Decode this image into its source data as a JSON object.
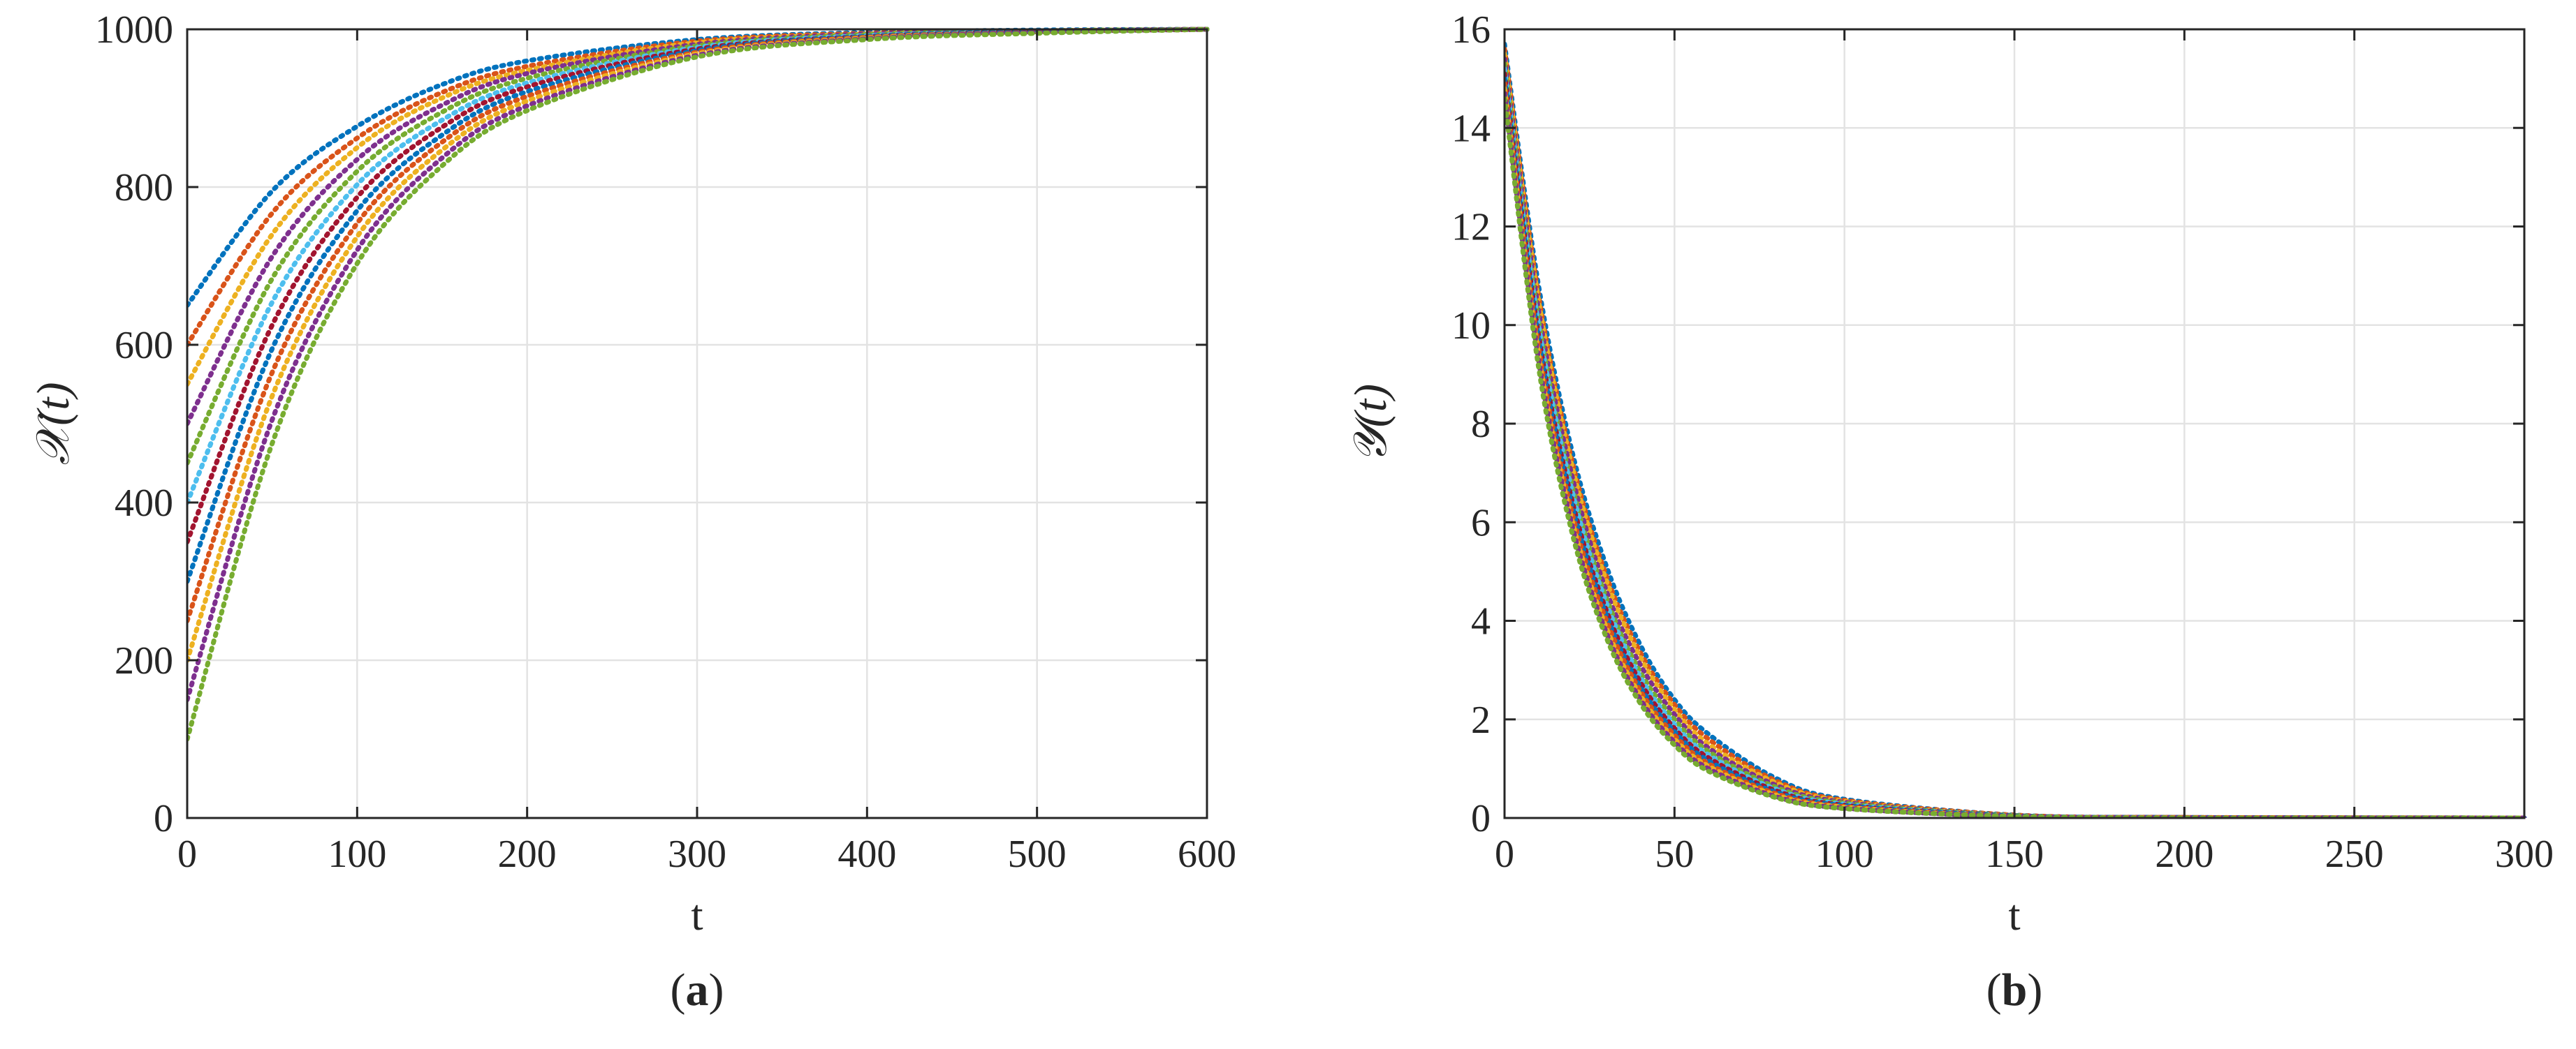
{
  "chart_data": [
    {
      "type": "line",
      "caption": "a",
      "xlabel": "t",
      "ylabel": "𝒳(t)",
      "xlim": [
        0,
        600
      ],
      "ylim": [
        0,
        1000
      ],
      "xticks": [
        0,
        100,
        200,
        300,
        400,
        500,
        600
      ],
      "yticks": [
        0,
        200,
        400,
        600,
        800,
        1000
      ],
      "grid": true,
      "line_style": "dotted",
      "series": [
        {
          "color": "#0072BD",
          "x": [
            0,
            50,
            100,
            150,
            200,
            300,
            400,
            500,
            600
          ],
          "y": [
            650,
            795,
            877,
            930,
            960,
            987,
            996,
            999,
            1000
          ]
        },
        {
          "color": "#D95319",
          "x": [
            0,
            50,
            100,
            150,
            200,
            300,
            400,
            500,
            600
          ],
          "y": [
            600,
            767,
            862,
            920,
            953,
            985,
            995,
            998,
            1000
          ]
        },
        {
          "color": "#EDB120",
          "x": [
            0,
            50,
            100,
            150,
            200,
            300,
            400,
            500,
            600
          ],
          "y": [
            550,
            740,
            850,
            913,
            948,
            983,
            994,
            998,
            1000
          ]
        },
        {
          "color": "#7E2F8E",
          "x": [
            0,
            50,
            100,
            150,
            200,
            300,
            400,
            500,
            600
          ],
          "y": [
            500,
            712,
            835,
            904,
            944,
            981,
            994,
            998,
            1000
          ]
        },
        {
          "color": "#77AC30",
          "x": [
            0,
            50,
            100,
            150,
            200,
            300,
            400,
            500,
            600
          ],
          "y": [
            450,
            684,
            820,
            895,
            938,
            979,
            993,
            998,
            1000
          ]
        },
        {
          "color": "#4DBEEE",
          "x": [
            0,
            50,
            100,
            150,
            200,
            300,
            400,
            500,
            600
          ],
          "y": [
            400,
            654,
            803,
            885,
            932,
            977,
            992,
            997,
            1000
          ]
        },
        {
          "color": "#A2142F",
          "x": [
            0,
            50,
            100,
            150,
            200,
            300,
            400,
            500,
            600
          ],
          "y": [
            350,
            625,
            787,
            876,
            927,
            975,
            991,
            997,
            1000
          ]
        },
        {
          "color": "#0072BD",
          "x": [
            0,
            50,
            100,
            150,
            200,
            300,
            400,
            500,
            600
          ],
          "y": [
            300,
            595,
            770,
            866,
            921,
            973,
            991,
            997,
            1000
          ]
        },
        {
          "color": "#D95319",
          "x": [
            0,
            50,
            100,
            150,
            200,
            300,
            400,
            500,
            600
          ],
          "y": [
            250,
            565,
            754,
            857,
            915,
            971,
            990,
            996,
            1000
          ]
        },
        {
          "color": "#EDB120",
          "x": [
            0,
            50,
            100,
            150,
            200,
            300,
            400,
            500,
            600
          ],
          "y": [
            200,
            535,
            737,
            847,
            909,
            969,
            989,
            996,
            1000
          ]
        },
        {
          "color": "#7E2F8E",
          "x": [
            0,
            50,
            100,
            150,
            200,
            300,
            400,
            500,
            600
          ],
          "y": [
            150,
            505,
            720,
            837,
            903,
            967,
            988,
            996,
            1000
          ]
        },
        {
          "color": "#77AC30",
          "x": [
            0,
            50,
            100,
            150,
            200,
            300,
            400,
            500,
            600
          ],
          "y": [
            100,
            475,
            703,
            827,
            897,
            965,
            987,
            995,
            1000
          ]
        }
      ]
    },
    {
      "type": "line",
      "caption": "b",
      "xlabel": "t",
      "ylabel": "𝒴(t)",
      "xlim": [
        0,
        300
      ],
      "ylim": [
        0,
        16
      ],
      "xticks": [
        0,
        50,
        100,
        150,
        200,
        250,
        300
      ],
      "yticks": [
        0,
        2,
        4,
        6,
        8,
        10,
        12,
        14,
        16
      ],
      "grid": true,
      "line_style": "dotted",
      "series": [
        {
          "color": "#0072BD",
          "x": [
            0,
            10,
            20,
            30,
            40,
            50,
            60,
            80,
            100,
            150,
            200,
            300
          ],
          "y": [
            15.7,
            10.8,
            7.4,
            5.1,
            3.5,
            2.4,
            1.7,
            0.8,
            0.38,
            0.06,
            0.01,
            0
          ]
        },
        {
          "color": "#D95319",
          "x": [
            0,
            10,
            20,
            30,
            40,
            50,
            60,
            80,
            100,
            150,
            200,
            300
          ],
          "y": [
            15.6,
            10.6,
            7.2,
            4.9,
            3.35,
            2.3,
            1.6,
            0.75,
            0.36,
            0.06,
            0.01,
            0
          ]
        },
        {
          "color": "#EDB120",
          "x": [
            0,
            10,
            20,
            30,
            40,
            50,
            60,
            80,
            100,
            150,
            200,
            300
          ],
          "y": [
            15.5,
            10.5,
            7.1,
            4.8,
            3.25,
            2.2,
            1.5,
            0.71,
            0.34,
            0.05,
            0.01,
            0
          ]
        },
        {
          "color": "#7E2F8E",
          "x": [
            0,
            10,
            20,
            30,
            40,
            50,
            60,
            80,
            100,
            150,
            200,
            300
          ],
          "y": [
            15.4,
            10.3,
            6.9,
            4.6,
            3.1,
            2.1,
            1.42,
            0.66,
            0.32,
            0.05,
            0.01,
            0
          ]
        },
        {
          "color": "#77AC30",
          "x": [
            0,
            10,
            20,
            30,
            40,
            50,
            60,
            80,
            100,
            150,
            200,
            300
          ],
          "y": [
            15.3,
            10.1,
            6.7,
            4.45,
            2.95,
            2.0,
            1.35,
            0.62,
            0.3,
            0.05,
            0.01,
            0
          ]
        },
        {
          "color": "#4DBEEE",
          "x": [
            0,
            10,
            20,
            30,
            40,
            50,
            60,
            80,
            100,
            150,
            200,
            300
          ],
          "y": [
            15.2,
            10.0,
            6.6,
            4.35,
            2.85,
            1.9,
            1.28,
            0.58,
            0.28,
            0.04,
            0.01,
            0
          ]
        },
        {
          "color": "#A2142F",
          "x": [
            0,
            10,
            20,
            30,
            40,
            50,
            60,
            80,
            100,
            150,
            200,
            300
          ],
          "y": [
            15.1,
            9.8,
            6.4,
            4.2,
            2.75,
            1.82,
            1.22,
            0.55,
            0.26,
            0.04,
            0.01,
            0
          ]
        },
        {
          "color": "#0072BD",
          "x": [
            0,
            10,
            20,
            30,
            40,
            50,
            60,
            80,
            100,
            150,
            200,
            300
          ],
          "y": [
            15.0,
            9.7,
            6.3,
            4.1,
            2.65,
            1.75,
            1.16,
            0.52,
            0.25,
            0.04,
            0.01,
            0
          ]
        },
        {
          "color": "#D95319",
          "x": [
            0,
            10,
            20,
            30,
            40,
            50,
            60,
            80,
            100,
            150,
            200,
            300
          ],
          "y": [
            14.9,
            9.55,
            6.15,
            4.0,
            2.57,
            1.68,
            1.1,
            0.49,
            0.23,
            0.03,
            0.01,
            0
          ]
        },
        {
          "color": "#EDB120",
          "x": [
            0,
            10,
            20,
            30,
            40,
            50,
            60,
            80,
            100,
            150,
            200,
            300
          ],
          "y": [
            14.8,
            9.4,
            6.0,
            3.85,
            2.48,
            1.6,
            1.05,
            0.46,
            0.22,
            0.03,
            0,
            0
          ]
        },
        {
          "color": "#7E2F8E",
          "x": [
            0,
            10,
            20,
            30,
            40,
            50,
            60,
            80,
            100,
            150,
            200,
            300
          ],
          "y": [
            14.7,
            9.3,
            5.9,
            3.75,
            2.4,
            1.54,
            1.0,
            0.43,
            0.2,
            0.03,
            0,
            0
          ]
        },
        {
          "color": "#77AC30",
          "x": [
            0,
            10,
            20,
            30,
            40,
            50,
            60,
            80,
            100,
            150,
            200,
            300
          ],
          "y": [
            14.6,
            9.15,
            5.75,
            3.65,
            2.32,
            1.48,
            0.95,
            0.41,
            0.19,
            0.03,
            0,
            0
          ]
        }
      ]
    }
  ]
}
